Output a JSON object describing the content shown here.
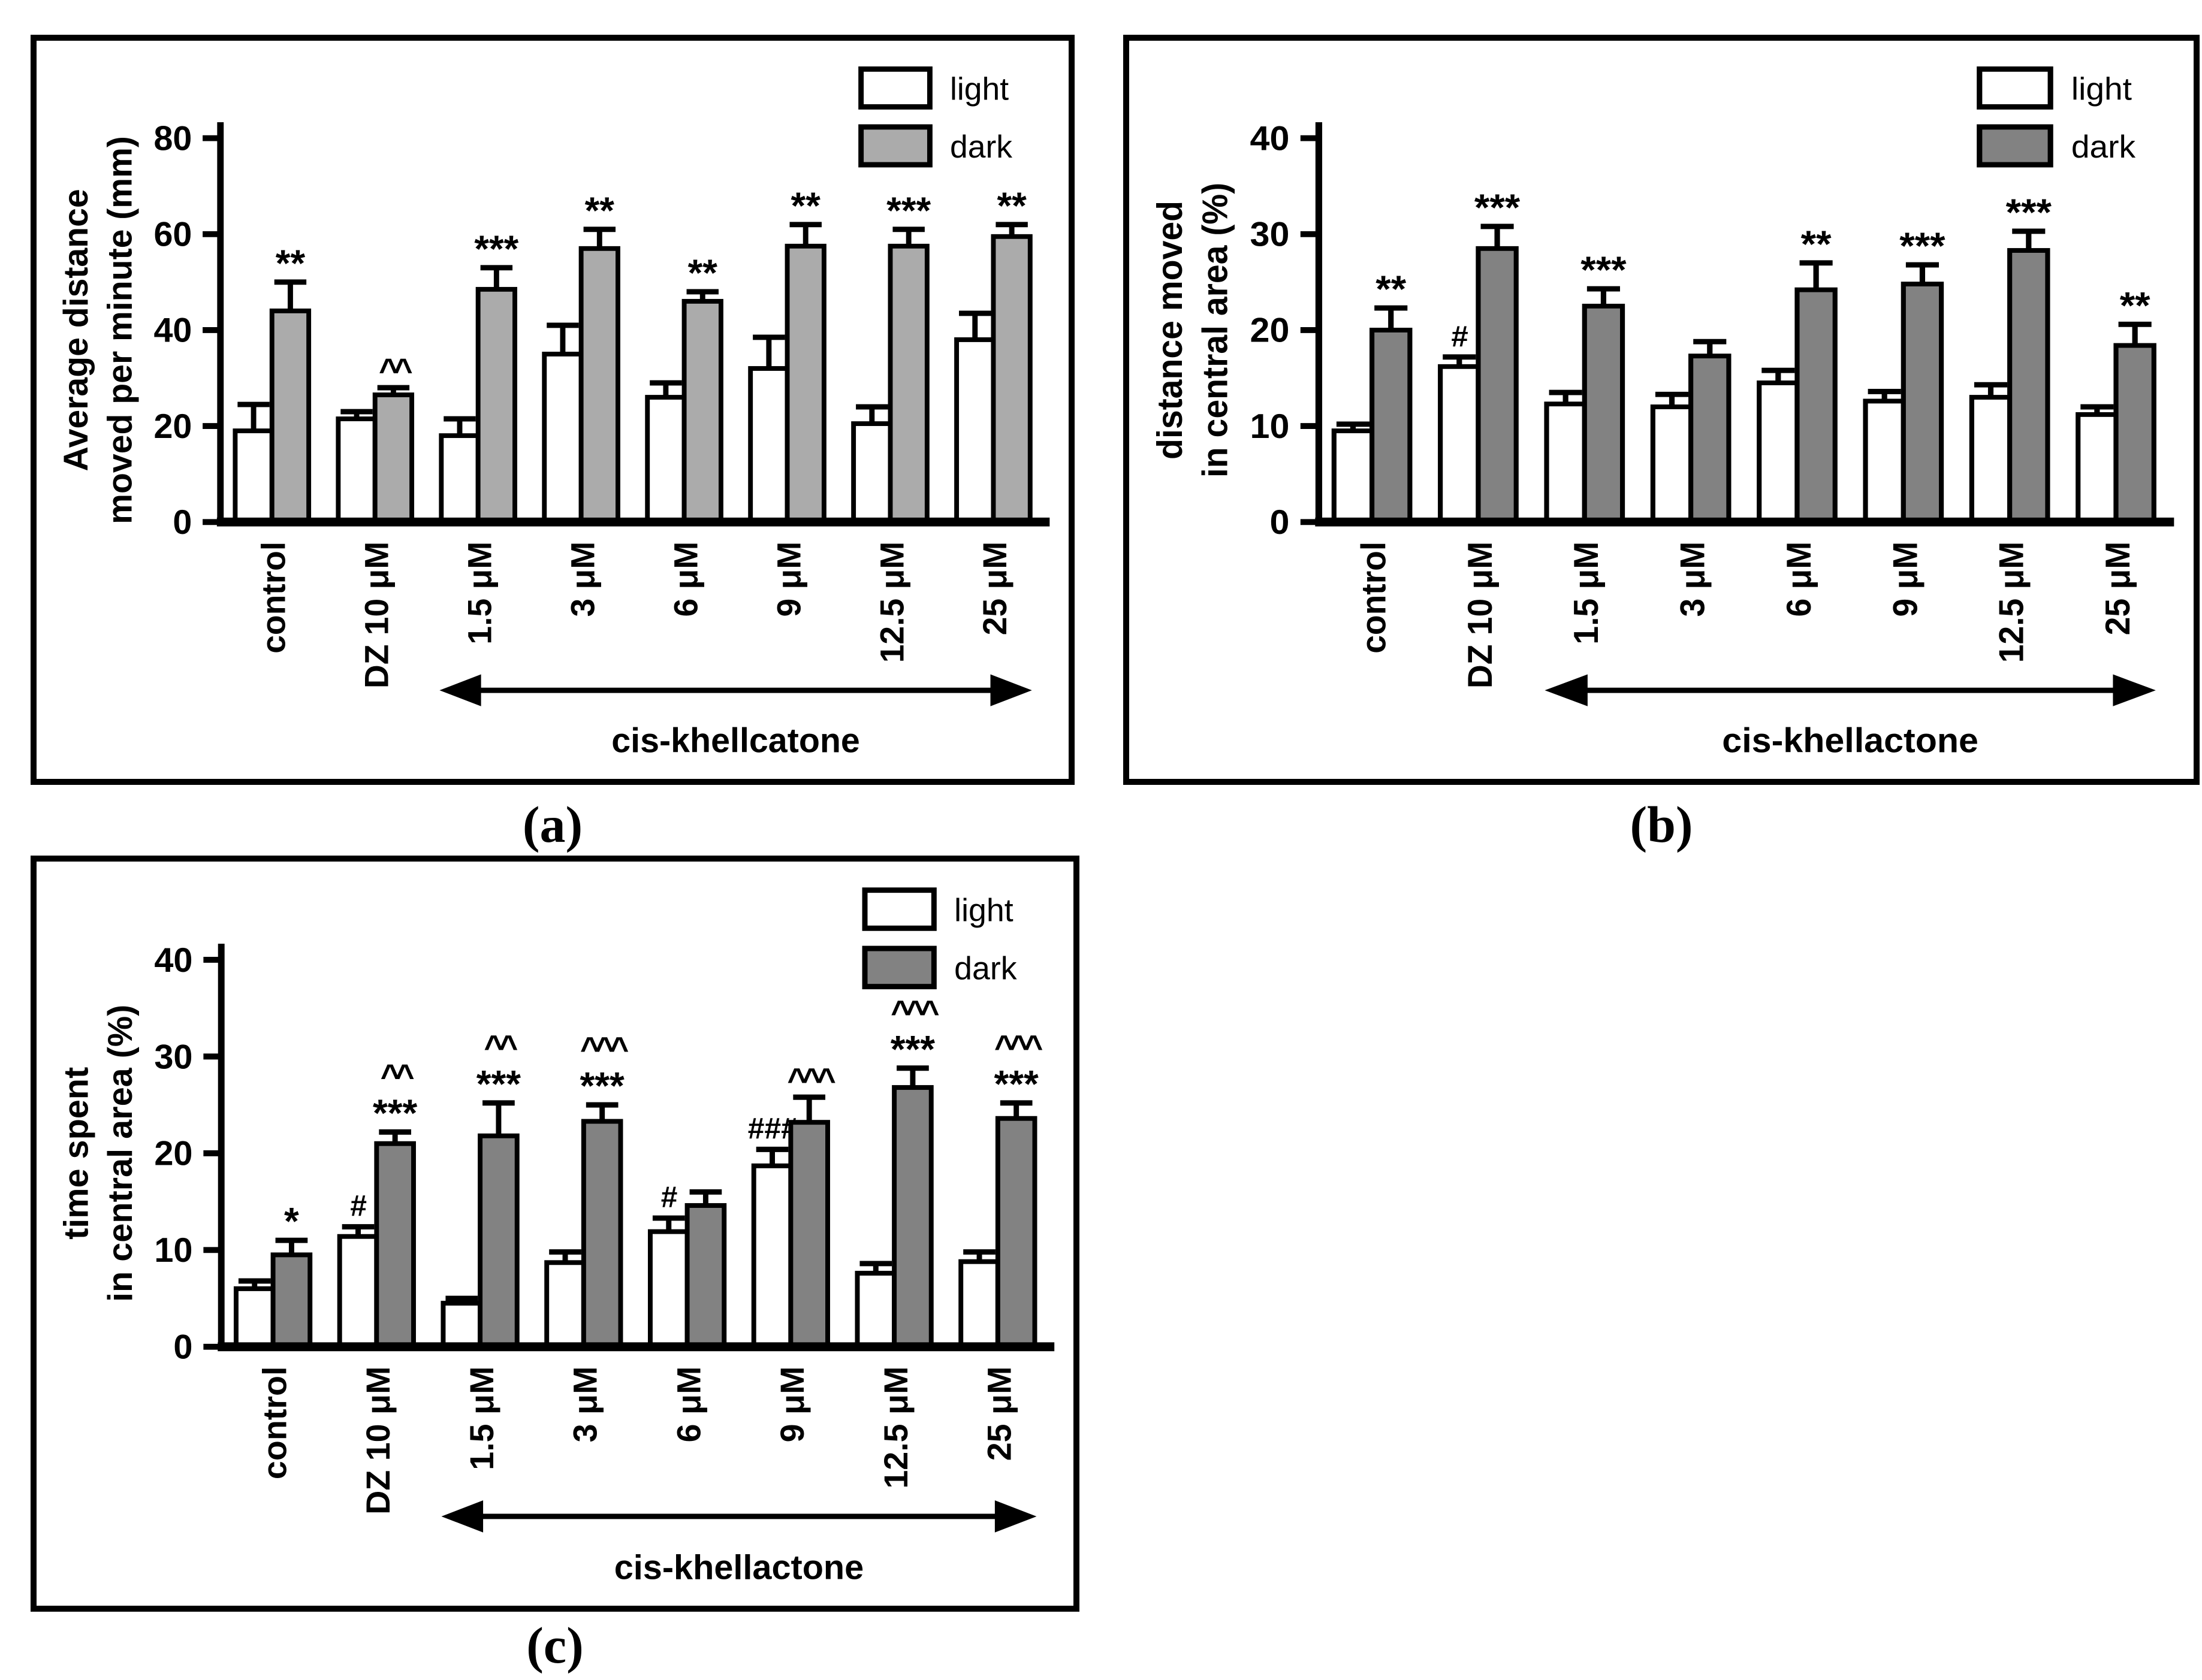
{
  "figure": {
    "background": "#ffffff",
    "panel_border_color": "#000000",
    "legend_labels": [
      "light",
      "dark"
    ],
    "significance_symbols_used": [
      "*",
      "**",
      "***",
      "#",
      "###",
      "^^",
      "^^^"
    ]
  },
  "chart_data": [
    {
      "id": "a",
      "type": "bar",
      "caption": "(a)",
      "ylabel_lines": [
        "Average distance",
        "moved per minute (mm)"
      ],
      "ylim": [
        0,
        80
      ],
      "yticks": [
        0,
        20,
        40,
        60,
        80
      ],
      "grid": false,
      "legend": [
        "light",
        "dark"
      ],
      "legend_position": "top-right",
      "categories": [
        "control",
        "DZ 10 μM",
        "1.5 μM",
        "3 μM",
        "6 μM",
        "9 μM",
        "12.5 μM",
        "25 μM"
      ],
      "colors": {
        "light_fill": "#ffffff",
        "dark_fill": "#ABABAB",
        "stroke": "#000000"
      },
      "series": [
        {
          "name": "light",
          "values": [
            19,
            21.5,
            18,
            35,
            26,
            32,
            20.5,
            38
          ],
          "errors": [
            5.5,
            1.5,
            3.5,
            6,
            3,
            6.5,
            3.5,
            5.5
          ],
          "sig": [
            [],
            [],
            [],
            [],
            [],
            [],
            [],
            []
          ]
        },
        {
          "name": "dark",
          "values": [
            44,
            26.5,
            48.5,
            57,
            46,
            57.5,
            57.5,
            59.5
          ],
          "errors": [
            6,
            1.5,
            4.5,
            4,
            2,
            4.5,
            3.5,
            2.5
          ],
          "sig": [
            [
              "**"
            ],
            [
              "^^"
            ],
            [
              "***"
            ],
            [
              "**"
            ],
            [
              "**"
            ],
            [
              "**"
            ],
            [
              "***"
            ],
            [
              "**"
            ]
          ]
        }
      ],
      "group_arrow": {
        "from_index": 2,
        "to_index": 7,
        "label": "cis-khellcatone"
      }
    },
    {
      "id": "b",
      "type": "bar",
      "caption": "(b)",
      "ylabel_lines": [
        "distance moved",
        "in central area (%)"
      ],
      "ylim": [
        0,
        40
      ],
      "yticks": [
        0,
        10,
        20,
        30,
        40
      ],
      "grid": false,
      "legend": [
        "light",
        "dark"
      ],
      "legend_position": "top-right",
      "categories": [
        "control",
        "DZ 10 μM",
        "1.5 μM",
        "3 μM",
        "6 μM",
        "9 μM",
        "12.5 μM",
        "25 μM"
      ],
      "colors": {
        "light_fill": "#ffffff",
        "dark_fill": "#828282",
        "stroke": "#000000"
      },
      "series": [
        {
          "name": "light",
          "values": [
            9.5,
            16.2,
            12.3,
            12,
            14.5,
            12.6,
            13,
            11.2
          ],
          "errors": [
            0.7,
            1,
            1.2,
            1.3,
            1.3,
            1,
            1.3,
            0.8
          ],
          "sig": [
            [],
            [
              "#"
            ],
            [],
            [],
            [],
            [],
            [],
            []
          ]
        },
        {
          "name": "dark",
          "values": [
            20,
            28.5,
            22.5,
            17.3,
            24.2,
            24.8,
            28.3,
            18.4
          ],
          "errors": [
            2.3,
            2.3,
            1.8,
            1.5,
            2.8,
            2,
            2,
            2.2
          ],
          "sig": [
            [
              "**"
            ],
            [
              "***"
            ],
            [
              "***"
            ],
            [],
            [
              "**"
            ],
            [
              "***"
            ],
            [
              "***"
            ],
            [
              "**"
            ]
          ]
        }
      ],
      "group_arrow": {
        "from_index": 2,
        "to_index": 7,
        "label": "cis-khellactone"
      }
    },
    {
      "id": "c",
      "type": "bar",
      "caption": "(c)",
      "ylabel_lines": [
        "time spent",
        "in central area (%)"
      ],
      "ylim": [
        0,
        40
      ],
      "yticks": [
        0,
        10,
        20,
        30,
        40
      ],
      "grid": false,
      "legend": [
        "light",
        "dark"
      ],
      "legend_position": "top-right",
      "categories": [
        "control",
        "DZ 10 μM",
        "1.5 μM",
        "3 μM",
        "6 μM",
        "9 μM",
        "12.5 μM",
        "25 μM"
      ],
      "colors": {
        "light_fill": "#ffffff",
        "dark_fill": "#828282",
        "stroke": "#000000"
      },
      "series": [
        {
          "name": "light",
          "values": [
            6,
            11.4,
            4.5,
            8.7,
            11.9,
            18.7,
            7.6,
            8.8
          ],
          "errors": [
            0.8,
            1,
            0.5,
            1.1,
            1.4,
            1.7,
            1,
            1
          ],
          "sig": [
            [],
            [
              "#"
            ],
            [],
            [],
            [
              "#"
            ],
            [
              "###"
            ],
            [],
            []
          ]
        },
        {
          "name": "dark",
          "values": [
            9.5,
            21,
            21.8,
            23.3,
            14.6,
            23.2,
            26.8,
            23.6
          ],
          "errors": [
            1.5,
            1.2,
            3.4,
            1.7,
            1.4,
            2.6,
            2,
            1.6
          ],
          "sig": [
            [
              "*"
            ],
            [
              "***",
              "^^"
            ],
            [
              "***",
              "^^"
            ],
            [
              "***",
              "^^^"
            ],
            [],
            [
              "^^^"
            ],
            [
              "***",
              "^^^"
            ],
            [
              "***",
              "^^^"
            ]
          ]
        }
      ],
      "group_arrow": {
        "from_index": 2,
        "to_index": 7,
        "label": "cis-khellactone"
      }
    }
  ]
}
